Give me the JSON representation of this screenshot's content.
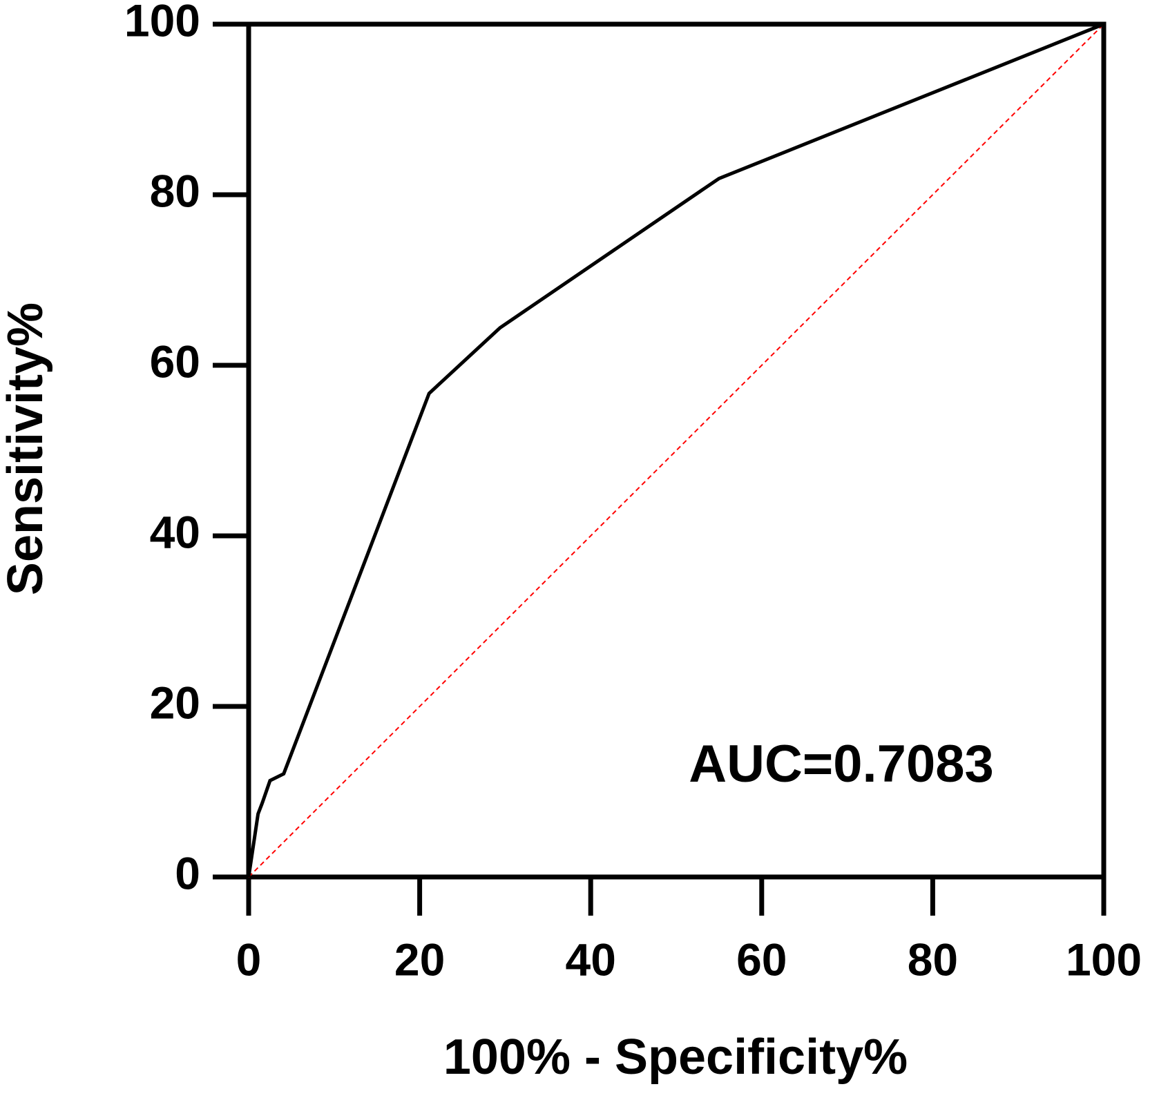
{
  "chart_data": {
    "type": "line",
    "xlabel": "100% - Specificity%",
    "ylabel": "Sensitivity%",
    "annotation": "AUC=0.7083",
    "xlim": [
      0,
      100
    ],
    "ylim": [
      0,
      100
    ],
    "xticks": [
      0,
      20,
      40,
      60,
      80,
      100
    ],
    "yticks": [
      0,
      20,
      40,
      60,
      80,
      100
    ],
    "series": [
      {
        "color": "#000000",
        "linestyle": "solid",
        "x": [
          0,
          1.1,
          1.6,
          2.5,
          4.1,
          21.1,
          29.4,
          55.0,
          100
        ],
        "values": [
          0,
          7.4,
          8.7,
          11.3,
          12.1,
          56.7,
          64.4,
          81.9,
          100
        ]
      },
      {
        "color": "#ff0000",
        "linestyle": "dashed",
        "x": [
          0,
          100
        ],
        "values": [
          0,
          100
        ]
      }
    ]
  }
}
